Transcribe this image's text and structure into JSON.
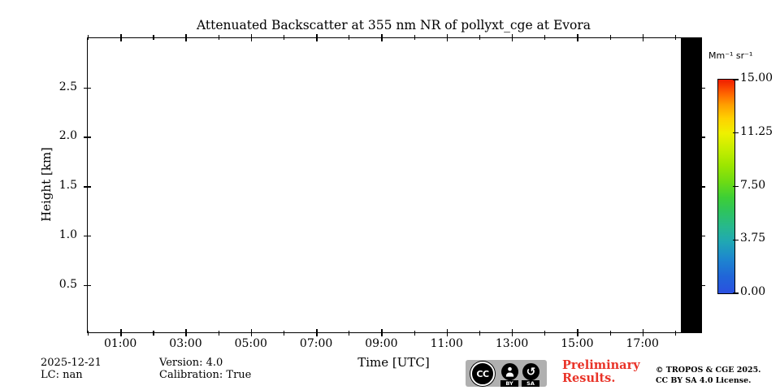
{
  "colors": {
    "preliminary_red": "#e93328",
    "badge_gray": "#b0b0b0",
    "no_data_black": "#000000",
    "axis_black": "#000000"
  },
  "footer": {
    "date": "2025-12-21",
    "lc": "LC: nan",
    "version": "Version: 4.0",
    "calibration": "Calibration: True",
    "preliminary_line1": "Preliminary",
    "preliminary_line2": "Results.",
    "copyright_line1": "© TROPOS & CGE 2025.",
    "copyright_line2": "CC BY SA 4.0 License.",
    "badge": {
      "cc": "CC",
      "by": "BY",
      "sa": "SA"
    }
  },
  "chart_data": {
    "type": "heatmap",
    "title": "Attenuated Backscatter at 355 nm NR of pollyxt_cge at Evora",
    "xlabel": "Time [UTC]",
    "ylabel": "Height [km]",
    "grid": false,
    "x_range_hours": [
      0,
      18.8
    ],
    "x_major_hours": [
      1,
      3,
      5,
      7,
      9,
      11,
      13,
      15,
      17
    ],
    "x_major_labels": [
      "01:00",
      "03:00",
      "05:00",
      "07:00",
      "09:00",
      "11:00",
      "13:00",
      "15:00",
      "17:00"
    ],
    "x_minor_hours": [
      0,
      2,
      4,
      6,
      8,
      10,
      12,
      14,
      16,
      18
    ],
    "y_range_km": [
      0.02,
      3.0
    ],
    "y_major_values": [
      0.5,
      1.0,
      1.5,
      2.0,
      2.5
    ],
    "y_major_labels": [
      "0.5",
      "1.0",
      "1.5",
      "2.0",
      "2.5"
    ],
    "values_note": "plot field is blank (no backscatter signal shown) except a solid black no-data band at the end of the day",
    "no_data_band_hours": [
      18.17,
      18.8
    ],
    "colorbar": {
      "unit": "Mm⁻¹ sr⁻¹",
      "vmin": 0,
      "vmax": 15,
      "tick_values": [
        15.0,
        11.25,
        7.5,
        3.75,
        0.0
      ],
      "tick_labels": [
        "15.00",
        "11.25",
        "7.50",
        "3.75",
        "0.00"
      ],
      "gradient_bottom_to_top": [
        {
          "pos": 0,
          "color": "#2b50e0"
        },
        {
          "pos": 8,
          "color": "#2066d8"
        },
        {
          "pos": 16,
          "color": "#1d86cf"
        },
        {
          "pos": 24,
          "color": "#20a7b4"
        },
        {
          "pos": 31,
          "color": "#27b88e"
        },
        {
          "pos": 38,
          "color": "#2dc360"
        },
        {
          "pos": 45,
          "color": "#3ecf35"
        },
        {
          "pos": 52,
          "color": "#6cdb14"
        },
        {
          "pos": 60,
          "color": "#9de600"
        },
        {
          "pos": 68,
          "color": "#c9ee00"
        },
        {
          "pos": 75,
          "color": "#eff000"
        },
        {
          "pos": 82,
          "color": "#ffd000"
        },
        {
          "pos": 88,
          "color": "#ffa000"
        },
        {
          "pos": 93,
          "color": "#ff6a00"
        },
        {
          "pos": 97,
          "color": "#f83c00"
        },
        {
          "pos": 100,
          "color": "#ee1e00"
        }
      ]
    }
  }
}
